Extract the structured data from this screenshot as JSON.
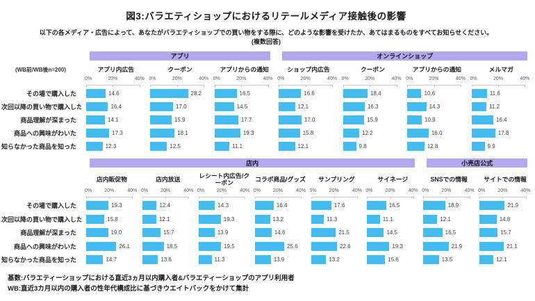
{
  "title": "図3:バラエティショップにおけるリテールメディア接触後の影響",
  "subtitle": "以下の各メディア・広告によって、あなたがバラエティショップでの買い物をする際に、どのような影響を受けたか、あてはまるものをすべてお知らせください。",
  "subtitle_note": "(複数回答)",
  "side_note": "(WB前/WB後n=200)",
  "footer": {
    "line1": "基数:バラエティーショップにおける直近3ヵ月以内購入者&バラエティーショップのアプリ利用者",
    "line2": "WB:直近3カ月以内の購入者の性年代構成比に基づきウエイトバックをかけて集計"
  },
  "colors": {
    "bar": "#44bcf0",
    "band": "#b3a7ee",
    "axis_line": "#c6c6c6"
  },
  "chart_data": {
    "type": "bar",
    "orientation": "horizontal",
    "axis": {
      "ticks_percent": [
        0,
        20,
        40
      ],
      "tick_labels": [
        "0%",
        "20%",
        "40%"
      ],
      "min": 0,
      "max": 40,
      "plot_max": 44.5
    },
    "row_categories": [
      "その場で購入した",
      "次回以降の買い物で購入した",
      "商品理解が深まった",
      "商品への興味がわいた",
      "知らなかった商品を知った"
    ],
    "sections": [
      {
        "name": "top",
        "groups": [
          {
            "label": "アプリ",
            "columns": [
              {
                "label": "アプリ内広告",
                "values": [
                  "14.6",
                  "16.4",
                  "14.1",
                  "17.3",
                  "12.3"
                ]
              },
              {
                "label": "クーポン",
                "values": [
                  "28.2",
                  "17.0",
                  "15.9",
                  "18.1",
                  "12.5"
                ]
              },
              {
                "label": "アプリからの通知",
                "values": [
                  "16.5",
                  "14.5",
                  "17.7",
                  "19.3",
                  "11.1"
                ]
              }
            ]
          },
          {
            "label": "オンラインショップ",
            "columns": [
              {
                "label": "ショップ内広告",
                "values": [
                  "16.6",
                  "12.1",
                  "17.0",
                  "15.8",
                  "12.1"
                ]
              },
              {
                "label": "クーポン",
                "values": [
                  "18.4",
                  "16.3",
                  "15.9",
                  "12.2",
                  "9.8"
                ]
              },
              {
                "label": "アプリからの通知",
                "values": [
                  "10.6",
                  "14.3",
                  "10.9",
                  "16.0",
                  "12.8"
                ]
              },
              {
                "label": "メルマガ",
                "values": [
                  "11.6",
                  "11.2",
                  "16.4",
                  "17.8",
                  "9.9"
                ]
              }
            ]
          }
        ]
      },
      {
        "name": "bottom",
        "groups": [
          {
            "label": "店内",
            "columns": [
              {
                "label": "店内販促物",
                "values": [
                  "19.3",
                  "15.8",
                  "19.0",
                  "26.1",
                  "14.7"
                ]
              },
              {
                "label": "店内放送",
                "values": [
                  "12.4",
                  "12.1",
                  "15.7",
                  "18.5",
                  "13.6"
                ]
              },
              {
                "label": "レシート内広告/クーポン",
                "values": [
                  "14.3",
                  "19.3",
                  "13.9",
                  "19.5",
                  "11.3"
                ]
              },
              {
                "label": "コラボ商品/グッズ",
                "values": [
                  "16.4",
                  "13.2",
                  "14.6",
                  "25.6",
                  "13.9"
                ]
              },
              {
                "label": "サンプリング",
                "values": [
                  "17.6",
                  "11.3",
                  "21.5",
                  "22.6",
                  "13.2"
                ]
              },
              {
                "label": "サイネージ",
                "values": [
                  "16.5",
                  "11.1",
                  "14.5",
                  "19.3",
                  "15.6"
                ]
              }
            ]
          },
          {
            "label": "小売店公式",
            "columns": [
              {
                "label": "SNSでの情報",
                "values": [
                  "18.9",
                  "12.1",
                  "16.5",
                  "21.9",
                  "13.5"
                ]
              },
              {
                "label": "サイトでの情報",
                "values": [
                  "21.9",
                  "14.8",
                  "15.7",
                  "21.1",
                  "12.1"
                ]
              }
            ]
          }
        ]
      }
    ]
  }
}
